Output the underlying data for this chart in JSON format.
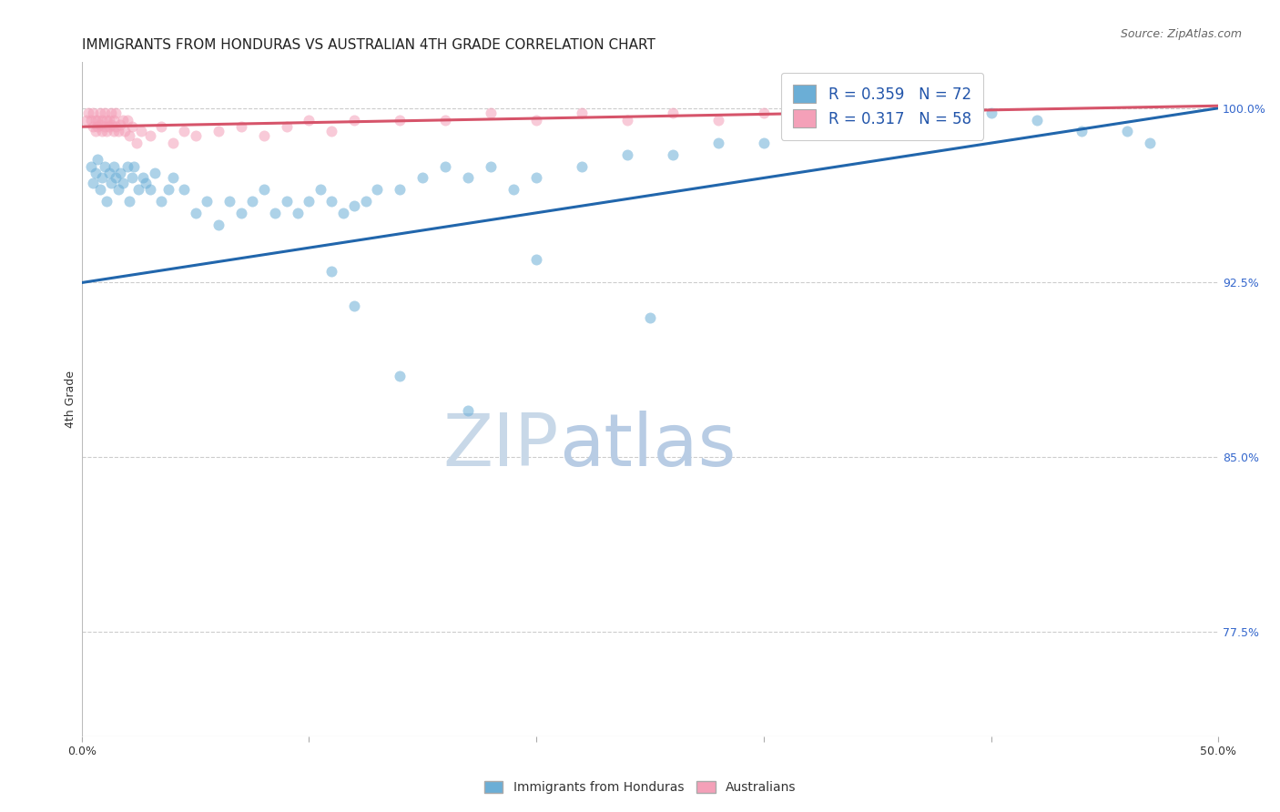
{
  "title": "IMMIGRANTS FROM HONDURAS VS AUSTRALIAN 4TH GRADE CORRELATION CHART",
  "source": "Source: ZipAtlas.com",
  "ylabel": "4th Grade",
  "xlim": [
    0.0,
    50.0
  ],
  "ylim": [
    73.0,
    102.0
  ],
  "yticks": [
    77.5,
    85.0,
    92.5,
    100.0
  ],
  "ytick_labels": [
    "77.5%",
    "85.0%",
    "92.5%",
    "100.0%"
  ],
  "xtick_labels": [
    "0.0%",
    "",
    "",
    "",
    "",
    "50.0%"
  ],
  "legend_blue": "R = 0.359   N = 72",
  "legend_pink": "R = 0.317   N = 58",
  "watermark_zip": "ZIP",
  "watermark_atlas": "atlas",
  "watermark_zip_color": "#c8d8e8",
  "watermark_atlas_color": "#b8cce4",
  "blue_color": "#6baed6",
  "pink_color": "#f4a0b8",
  "blue_line_color": "#2166ac",
  "pink_line_color": "#d6546a",
  "blue_line_y0": 92.5,
  "blue_line_y1": 100.0,
  "pink_line_y0": 99.2,
  "pink_line_y1": 100.1,
  "scatter_alpha": 0.55,
  "scatter_size": 75,
  "title_fontsize": 11,
  "source_fontsize": 9,
  "axis_label_fontsize": 9,
  "tick_fontsize": 9,
  "legend_fontsize": 12,
  "grid_color": "#cccccc",
  "background_color": "#ffffff",
  "blue_x": [
    0.4,
    0.5,
    0.6,
    0.7,
    0.8,
    0.9,
    1.0,
    1.1,
    1.2,
    1.3,
    1.4,
    1.5,
    1.6,
    1.7,
    1.8,
    2.0,
    2.1,
    2.2,
    2.3,
    2.5,
    2.7,
    2.8,
    3.0,
    3.2,
    3.5,
    3.8,
    4.0,
    4.5,
    5.0,
    5.5,
    6.0,
    6.5,
    7.0,
    7.5,
    8.0,
    8.5,
    9.0,
    9.5,
    10.0,
    10.5,
    11.0,
    11.5,
    12.0,
    12.5,
    13.0,
    14.0,
    15.0,
    16.0,
    17.0,
    18.0,
    19.0,
    20.0,
    22.0,
    24.0,
    26.0,
    28.0,
    30.0,
    32.0,
    34.0,
    36.0,
    38.0,
    40.0,
    42.0,
    44.0,
    46.0,
    47.0,
    11.0,
    12.0,
    20.0,
    25.0,
    14.0,
    17.0
  ],
  "blue_y": [
    97.5,
    96.8,
    97.2,
    97.8,
    96.5,
    97.0,
    97.5,
    96.0,
    97.2,
    96.8,
    97.5,
    97.0,
    96.5,
    97.2,
    96.8,
    97.5,
    96.0,
    97.0,
    97.5,
    96.5,
    97.0,
    96.8,
    96.5,
    97.2,
    96.0,
    96.5,
    97.0,
    96.5,
    95.5,
    96.0,
    95.0,
    96.0,
    95.5,
    96.0,
    96.5,
    95.5,
    96.0,
    95.5,
    96.0,
    96.5,
    96.0,
    95.5,
    95.8,
    96.0,
    96.5,
    96.5,
    97.0,
    97.5,
    97.0,
    97.5,
    96.5,
    97.0,
    97.5,
    98.0,
    98.0,
    98.5,
    98.5,
    99.0,
    99.0,
    99.5,
    99.5,
    99.8,
    99.5,
    99.0,
    99.0,
    98.5,
    93.0,
    91.5,
    93.5,
    91.0,
    88.5,
    87.0
  ],
  "pink_x": [
    0.2,
    0.3,
    0.4,
    0.5,
    0.5,
    0.6,
    0.6,
    0.7,
    0.7,
    0.8,
    0.8,
    0.9,
    0.9,
    1.0,
    1.0,
    1.1,
    1.1,
    1.2,
    1.2,
    1.3,
    1.3,
    1.4,
    1.4,
    1.5,
    1.5,
    1.6,
    1.7,
    1.8,
    1.9,
    2.0,
    2.1,
    2.2,
    2.4,
    2.6,
    3.0,
    3.5,
    4.0,
    4.5,
    5.0,
    6.0,
    7.0,
    8.0,
    9.0,
    10.0,
    11.0,
    12.0,
    14.0,
    16.0,
    18.0,
    20.0,
    22.0,
    24.0,
    26.0,
    28.0,
    30.0,
    32.0,
    34.0,
    36.0
  ],
  "pink_y": [
    99.5,
    99.8,
    99.5,
    99.8,
    99.2,
    99.5,
    99.0,
    99.5,
    99.2,
    99.8,
    99.3,
    99.5,
    99.0,
    99.8,
    99.2,
    99.5,
    99.0,
    99.5,
    99.2,
    99.8,
    99.3,
    99.0,
    99.5,
    99.2,
    99.8,
    99.0,
    99.3,
    99.5,
    99.0,
    99.5,
    98.8,
    99.2,
    98.5,
    99.0,
    98.8,
    99.2,
    98.5,
    99.0,
    98.8,
    99.0,
    99.2,
    98.8,
    99.2,
    99.5,
    99.0,
    99.5,
    99.5,
    99.5,
    99.8,
    99.5,
    99.8,
    99.5,
    99.8,
    99.5,
    99.8,
    99.5,
    99.8,
    99.5
  ]
}
